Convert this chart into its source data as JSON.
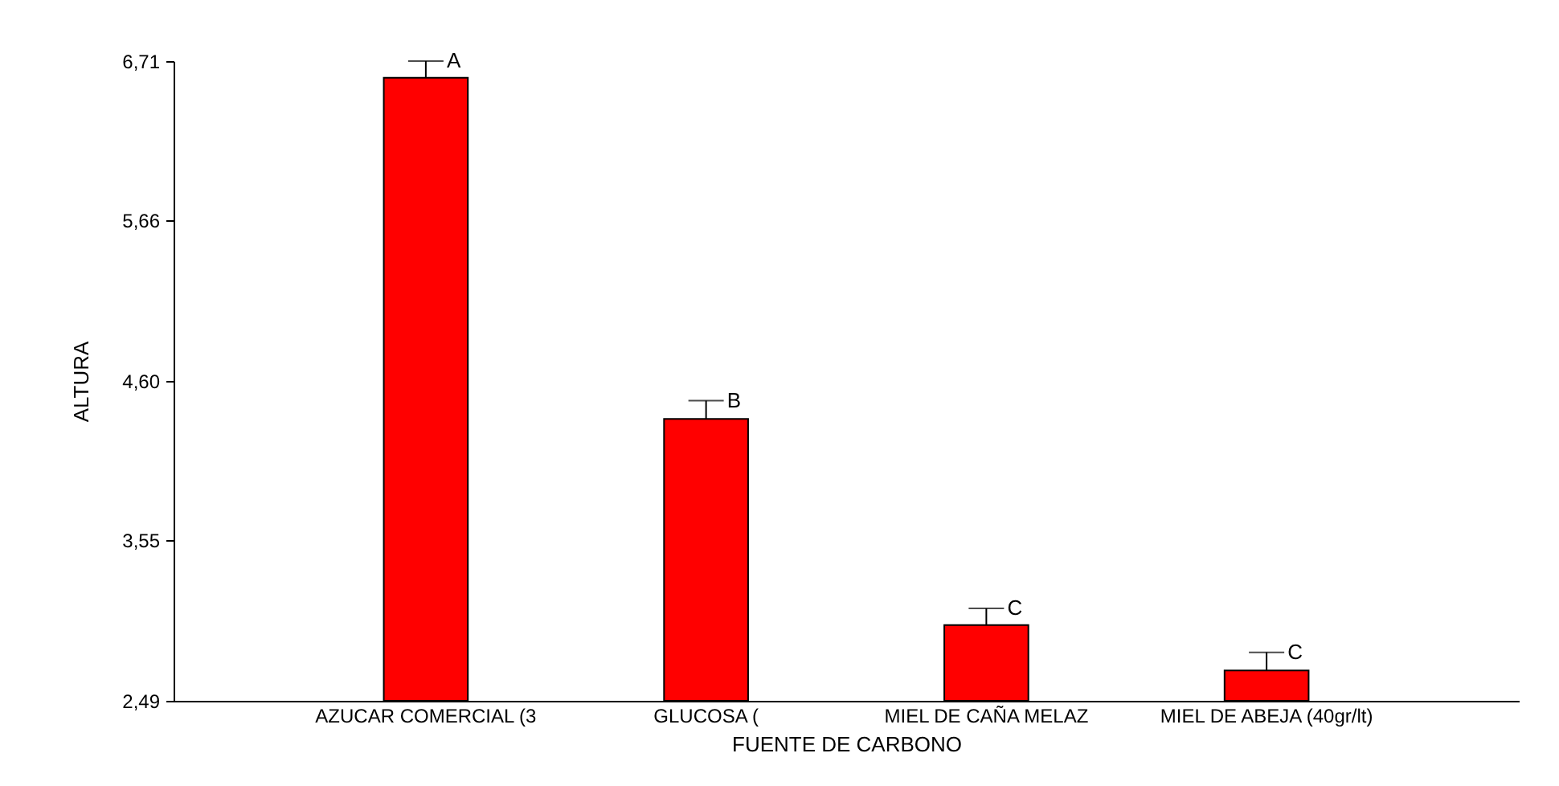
{
  "chart_data": {
    "type": "bar",
    "xlabel": "FUENTE DE CARBONO",
    "ylabel": "ALTURA",
    "categories": [
      "AZUCAR COMERCIAL (3",
      "GLUCOSA (",
      "MIEL DE CAÑA MELAZ",
      "MIEL DE ABEJA (40gr/lt)"
    ],
    "values": [
      6.6,
      4.35,
      2.99,
      2.69
    ],
    "color": "#ff0000",
    "errors": [
      [
        6.6,
        6.71
      ],
      [
        4.35,
        4.47
      ],
      [
        2.99,
        3.1
      ],
      [
        2.69,
        2.81
      ]
    ],
    "ylim": [
      2.49,
      6.71
    ],
    "yticks": [
      {
        "value": 2.49,
        "label": "2,49"
      },
      {
        "value": 3.55,
        "label": "3,55"
      },
      {
        "value": 4.6,
        "label": "4,60"
      },
      {
        "value": 5.66,
        "label": "5,66"
      },
      {
        "value": 6.71,
        "label": "6,71"
      }
    ],
    "annotations": [
      {
        "text": "A",
        "x": "AZUCAR COMERCIAL (3",
        "y": 6.71
      },
      {
        "text": "B",
        "x": "GLUCOSA (",
        "y": 4.47
      },
      {
        "text": "C",
        "x": "MIEL DE CAÑA MELAZ",
        "y": 3.1
      },
      {
        "text": "C",
        "x": "MIEL DE ABEJA (40gr/lt)",
        "y": 2.81
      }
    ],
    "grid": false
  }
}
